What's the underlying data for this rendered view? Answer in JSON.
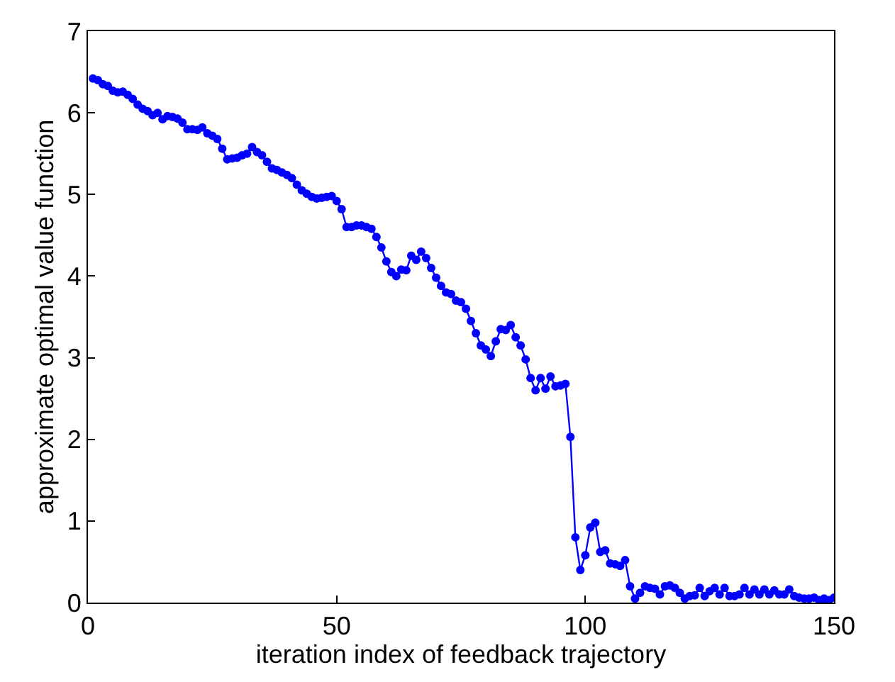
{
  "chart_data": {
    "type": "line",
    "xlabel": "iteration index of feedback trajectory",
    "ylabel": "approximate optimal value function",
    "xlim": [
      0,
      150
    ],
    "xticks": [
      0,
      50,
      100,
      150
    ],
    "ylim": [
      0,
      7
    ],
    "yticks": [
      0,
      1,
      2,
      3,
      4,
      5,
      6,
      7
    ],
    "marker": "circle",
    "line_style": "solid",
    "x": [
      1,
      2,
      3,
      4,
      5,
      6,
      7,
      8,
      9,
      10,
      11,
      12,
      13,
      14,
      15,
      16,
      17,
      18,
      19,
      20,
      21,
      22,
      23,
      24,
      25,
      26,
      27,
      28,
      29,
      30,
      31,
      32,
      33,
      34,
      35,
      36,
      37,
      38,
      39,
      40,
      41,
      42,
      43,
      44,
      45,
      46,
      47,
      48,
      49,
      50,
      51,
      52,
      53,
      54,
      55,
      56,
      57,
      58,
      59,
      60,
      61,
      62,
      63,
      64,
      65,
      66,
      67,
      68,
      69,
      70,
      71,
      72,
      73,
      74,
      75,
      76,
      77,
      78,
      79,
      80,
      81,
      82,
      83,
      84,
      85,
      86,
      87,
      88,
      89,
      90,
      91,
      92,
      93,
      94,
      95,
      96,
      97,
      98,
      99,
      100,
      101,
      102,
      103,
      104,
      105,
      106,
      107,
      108,
      109,
      110,
      111,
      112,
      113,
      114,
      115,
      116,
      117,
      118,
      119,
      120,
      121,
      122,
      123,
      124,
      125,
      126,
      127,
      128,
      129,
      130,
      131,
      132,
      133,
      134,
      135,
      136,
      137,
      138,
      139,
      140,
      141,
      142,
      143,
      144,
      145,
      146,
      147,
      148,
      149,
      150
    ],
    "series": [
      {
        "color": "#0000ff",
        "values": [
          6.42,
          6.4,
          6.35,
          6.33,
          6.27,
          6.25,
          6.26,
          6.22,
          6.17,
          6.1,
          6.05,
          6.02,
          5.97,
          6.0,
          5.92,
          5.96,
          5.95,
          5.93,
          5.88,
          5.8,
          5.8,
          5.79,
          5.82,
          5.75,
          5.72,
          5.68,
          5.56,
          5.43,
          5.44,
          5.45,
          5.48,
          5.5,
          5.58,
          5.52,
          5.48,
          5.4,
          5.32,
          5.3,
          5.27,
          5.24,
          5.2,
          5.12,
          5.05,
          5.01,
          4.97,
          4.95,
          4.96,
          4.97,
          4.98,
          4.92,
          4.82,
          4.6,
          4.6,
          4.62,
          4.62,
          4.6,
          4.58,
          4.48,
          4.35,
          4.18,
          4.05,
          4.0,
          4.08,
          4.07,
          4.25,
          4.2,
          4.3,
          4.22,
          4.1,
          3.98,
          3.88,
          3.8,
          3.78,
          3.7,
          3.68,
          3.6,
          3.45,
          3.3,
          3.15,
          3.1,
          3.02,
          3.2,
          3.35,
          3.34,
          3.4,
          3.25,
          3.15,
          2.98,
          2.75,
          2.6,
          2.75,
          2.62,
          2.77,
          2.65,
          2.66,
          2.68,
          2.03,
          0.8,
          0.4,
          0.58,
          0.92,
          0.98,
          0.62,
          0.64,
          0.48,
          0.47,
          0.45,
          0.52,
          0.2,
          0.05,
          0.12,
          0.2,
          0.18,
          0.17,
          0.1,
          0.2,
          0.21,
          0.18,
          0.12,
          0.05,
          0.08,
          0.09,
          0.18,
          0.08,
          0.14,
          0.18,
          0.1,
          0.18,
          0.08,
          0.08,
          0.1,
          0.18,
          0.1,
          0.16,
          0.1,
          0.16,
          0.1,
          0.15,
          0.1,
          0.1,
          0.16,
          0.08,
          0.06,
          0.05,
          0.05,
          0.06,
          0.03,
          0.05,
          0.03,
          0.06
        ]
      }
    ]
  }
}
